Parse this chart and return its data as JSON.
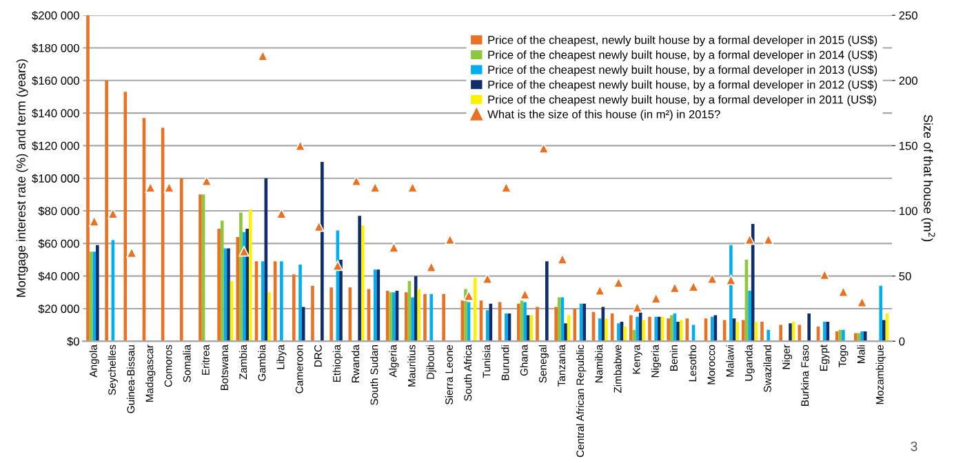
{
  "chart_data": {
    "type": "bar",
    "ylabel": "Mortgage interest rate (%) and term (years)",
    "y2label": "Size of that house (m$^{2}$)",
    "categories": [
      "Angola",
      "Seychelles",
      "Guinea-Bissau",
      "Madagascar",
      "Comoros",
      "Somalia",
      "Eritrea",
      "Botswana",
      "Zambia",
      "Gambia",
      "Libya",
      "Cameroon",
      "DRC",
      "Ethiopia",
      "Rwanda",
      "South Sudan",
      "Algeria",
      "Mauritius",
      "Djibouti",
      "Sierra Leone",
      "South Africa",
      "Tunisia",
      "Burundi",
      "Ghana",
      "Senegal",
      "Tanzania",
      "Central African Republic",
      "Namibia",
      "Zimbabwe",
      "Kenya",
      "Nigeria",
      "Benin",
      "Lesotho",
      "Morocco",
      "Malawi",
      "Uganda",
      "Swaziland",
      "Niger",
      "Burkina Faso",
      "Egypt",
      "Togo",
      "Mali",
      "Mozambique"
    ],
    "series": [
      {
        "name": "Price of the cheapest, newly built house by a formal developer in 2015 (US$)",
        "color": "#e87124",
        "values": [
          200000,
          160000,
          153000,
          137000,
          131000,
          100000,
          90000,
          69000,
          64000,
          49000,
          49000,
          41000,
          34000,
          33000,
          33000,
          32000,
          31000,
          30000,
          29000,
          29000,
          25000,
          25000,
          24000,
          23000,
          21000,
          21000,
          20000,
          18000,
          17000,
          16000,
          15000,
          14000,
          14000,
          14000,
          13000,
          13000,
          12000,
          10000,
          10000,
          9000,
          6000,
          5000,
          null
        ]
      },
      {
        "name": "Price of the cheapest newly built house, by a formal developer in 2014 (US$)",
        "color": "#8dc63f",
        "values": [
          55000,
          null,
          null,
          null,
          null,
          null,
          90000,
          74000,
          79000,
          null,
          null,
          null,
          null,
          null,
          null,
          null,
          30000,
          37000,
          null,
          null,
          32000,
          null,
          null,
          25000,
          null,
          27000,
          null,
          null,
          null,
          7000,
          null,
          16000,
          null,
          null,
          null,
          50000,
          null,
          null,
          null,
          null,
          7000,
          5000,
          null
        ]
      },
      {
        "name": "Price of the cheapest newly built house, by a formal developer in 2013 (US$)",
        "color": "#00aeef",
        "values": [
          55000,
          62000,
          null,
          null,
          null,
          null,
          null,
          57000,
          67000,
          49000,
          49000,
          47000,
          null,
          68000,
          null,
          44000,
          30000,
          27000,
          29000,
          null,
          24000,
          19000,
          17000,
          24000,
          null,
          27000,
          23000,
          14000,
          11000,
          15000,
          15000,
          17000,
          10000,
          15000,
          59000,
          31000,
          7000,
          null,
          null,
          12000,
          7000,
          6000,
          34000
        ]
      },
      {
        "name": "Price of the cheapest newly built house, by a formal developer in 2012 (US$)",
        "color": "#0f2d6b",
        "values": [
          59000,
          null,
          null,
          null,
          null,
          null,
          null,
          57000,
          69000,
          100000,
          null,
          21000,
          110000,
          50000,
          77000,
          44000,
          31000,
          40000,
          null,
          null,
          null,
          23000,
          17000,
          16000,
          49000,
          11000,
          23000,
          21000,
          12000,
          18000,
          15000,
          12000,
          null,
          16000,
          14000,
          72000,
          null,
          11000,
          17000,
          12000,
          null,
          6000,
          13000
        ]
      },
      {
        "name": "Price of the cheapest newly built house, by a formal developer in 2011 (US$)",
        "color": "#fff200",
        "values": [
          null,
          null,
          null,
          null,
          null,
          null,
          null,
          37000,
          81000,
          30000,
          null,
          null,
          null,
          null,
          71000,
          null,
          null,
          32000,
          null,
          null,
          39000,
          null,
          null,
          16000,
          null,
          16000,
          null,
          14000,
          9000,
          13000,
          15000,
          13000,
          null,
          null,
          12000,
          12000,
          null,
          12000,
          null,
          null,
          null,
          null,
          17000
        ]
      },
      {
        "name": "What is the size of this house (in m²) in 2015?",
        "type": "scatter",
        "axis": "y2",
        "marker": "triangle",
        "color": "#e87124",
        "values": [
          92,
          98,
          68,
          118,
          118,
          null,
          123,
          null,
          69,
          219,
          98,
          150,
          88,
          58,
          123,
          118,
          72,
          118,
          57,
          78,
          35,
          48,
          118,
          36,
          148,
          63,
          null,
          39,
          45,
          26,
          33,
          41,
          42,
          48,
          47,
          78,
          78,
          null,
          null,
          51,
          38,
          30,
          null
        ]
      }
    ],
    "ylim": [
      0,
      200000
    ],
    "yticks": [
      {
        "value": 0,
        "label": "$0"
      },
      {
        "value": 20000,
        "label": "$20 000"
      },
      {
        "value": 40000,
        "label": "$40 000"
      },
      {
        "value": 60000,
        "label": "$60 000"
      },
      {
        "value": 80000,
        "label": "$80 000"
      },
      {
        "value": 100000,
        "label": "$100 000"
      },
      {
        "value": 120000,
        "label": "$120 000"
      },
      {
        "value": 140000,
        "label": "$140 000"
      },
      {
        "value": 160000,
        "label": "$160 000"
      },
      {
        "value": 180000,
        "label": "$180 000"
      },
      {
        "value": 200000,
        "label": "$200 000"
      }
    ],
    "y2lim": [
      0,
      250
    ],
    "y2ticks": [
      0,
      50,
      100,
      150,
      200,
      250
    ],
    "grid": "y",
    "legend": "top right",
    "annotations": [
      "3"
    ]
  }
}
